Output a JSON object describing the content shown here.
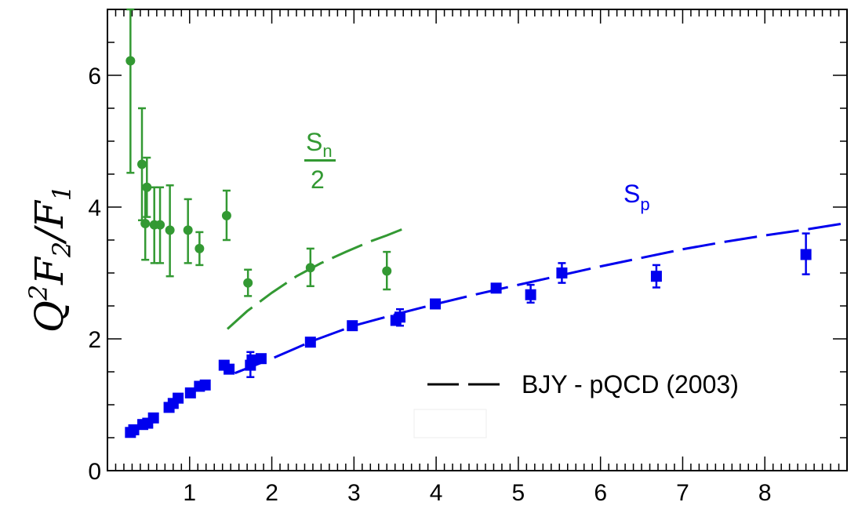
{
  "chart_data": {
    "type": "scatter",
    "title": "",
    "xlabel": "",
    "ylabel": "Q²F₂/F₁",
    "ylabel_parts": {
      "base1": "Q",
      "sup": "2",
      "base2": "F",
      "sub1": "2",
      "slash": "/",
      "base3": "F",
      "sub2": "1"
    },
    "xlim": [
      0,
      9
    ],
    "ylim": [
      0,
      7
    ],
    "x_ticks": [
      1,
      2,
      3,
      4,
      5,
      6,
      7,
      8
    ],
    "y_ticks": [
      0,
      2,
      4,
      6
    ],
    "grid": false,
    "legend": {
      "position": "bottom-right",
      "entries": [
        {
          "label": "BJY - pQCD (2003)",
          "style": "long-dash",
          "color": "#000000"
        }
      ]
    },
    "annotations": {
      "sn": {
        "text": "S",
        "sub": "n",
        "denominator": "2",
        "color": "#339933"
      },
      "sp": {
        "text": "S",
        "sub": "p",
        "color": "#0000ee"
      }
    },
    "series": [
      {
        "id": "neutron",
        "color": "#339933",
        "marker": "circle",
        "points": [
          {
            "x": 0.28,
            "y": 6.22,
            "lo": 4.52,
            "hi": 7.0
          },
          {
            "x": 0.42,
            "y": 4.65,
            "lo": 3.8,
            "hi": 5.5
          },
          {
            "x": 0.46,
            "y": 3.75,
            "lo": 3.2,
            "hi": 4.3
          },
          {
            "x": 0.48,
            "y": 4.3,
            "lo": 3.85,
            "hi": 4.75
          },
          {
            "x": 0.57,
            "y": 3.73,
            "lo": 3.15,
            "hi": 4.3
          },
          {
            "x": 0.64,
            "y": 3.73,
            "lo": 3.15,
            "hi": 4.3
          },
          {
            "x": 0.76,
            "y": 3.65,
            "lo": 2.95,
            "hi": 4.33
          },
          {
            "x": 0.98,
            "y": 3.65,
            "lo": 3.15,
            "hi": 4.12
          },
          {
            "x": 1.12,
            "y": 3.37,
            "lo": 3.12,
            "hi": 3.62
          },
          {
            "x": 1.45,
            "y": 3.87,
            "lo": 3.5,
            "hi": 4.25
          },
          {
            "x": 1.71,
            "y": 2.85,
            "lo": 2.65,
            "hi": 3.05
          },
          {
            "x": 2.47,
            "y": 3.08,
            "lo": 2.8,
            "hi": 3.37
          },
          {
            "x": 3.4,
            "y": 3.03,
            "lo": 2.75,
            "hi": 3.32
          }
        ]
      },
      {
        "id": "proton",
        "color": "#0000ee",
        "marker": "square",
        "points": [
          {
            "x": 0.28,
            "y": 0.58
          },
          {
            "x": 0.32,
            "y": 0.62
          },
          {
            "x": 0.43,
            "y": 0.7
          },
          {
            "x": 0.49,
            "y": 0.72
          },
          {
            "x": 0.56,
            "y": 0.8
          },
          {
            "x": 0.75,
            "y": 0.96
          },
          {
            "x": 0.8,
            "y": 1.02
          },
          {
            "x": 0.86,
            "y": 1.1
          },
          {
            "x": 1.01,
            "y": 1.18
          },
          {
            "x": 1.12,
            "y": 1.28
          },
          {
            "x": 1.19,
            "y": 1.3
          },
          {
            "x": 1.42,
            "y": 1.6
          },
          {
            "x": 1.48,
            "y": 1.54
          },
          {
            "x": 1.74,
            "y": 1.6,
            "lo": 1.42,
            "hi": 1.8
          },
          {
            "x": 1.76,
            "y": 1.68
          },
          {
            "x": 1.87,
            "y": 1.7
          },
          {
            "x": 2.47,
            "y": 1.95
          },
          {
            "x": 2.98,
            "y": 2.2
          },
          {
            "x": 3.51,
            "y": 2.28
          },
          {
            "x": 3.56,
            "y": 2.33,
            "lo": 2.2,
            "hi": 2.45
          },
          {
            "x": 3.99,
            "y": 2.53
          },
          {
            "x": 4.73,
            "y": 2.77
          },
          {
            "x": 5.15,
            "y": 2.67,
            "lo": 2.55,
            "hi": 2.82
          },
          {
            "x": 5.53,
            "y": 3.0,
            "lo": 2.85,
            "hi": 3.15
          },
          {
            "x": 6.68,
            "y": 2.95,
            "lo": 2.78,
            "hi": 3.12
          },
          {
            "x": 8.5,
            "y": 3.28,
            "lo": 2.98,
            "hi": 3.6
          }
        ]
      }
    ],
    "curves": [
      {
        "id": "sn-pqcd",
        "color": "#339933",
        "style": "long-dash",
        "x": [
          1.46,
          1.7,
          2.0,
          2.3,
          2.6,
          2.9,
          3.2,
          3.4,
          3.62
        ],
        "y": [
          2.15,
          2.42,
          2.7,
          2.95,
          3.15,
          3.32,
          3.48,
          3.57,
          3.68
        ]
      },
      {
        "id": "sp-pqcd",
        "color": "#0000ee",
        "style": "long-dash",
        "x": [
          1.55,
          2.0,
          2.5,
          3.0,
          3.5,
          4.0,
          4.5,
          5.0,
          5.5,
          6.0,
          6.5,
          7.0,
          7.5,
          8.0,
          8.5,
          8.95
        ],
        "y": [
          1.48,
          1.7,
          1.97,
          2.2,
          2.37,
          2.53,
          2.68,
          2.82,
          2.96,
          3.1,
          3.23,
          3.36,
          3.47,
          3.57,
          3.66,
          3.75
        ]
      }
    ]
  }
}
